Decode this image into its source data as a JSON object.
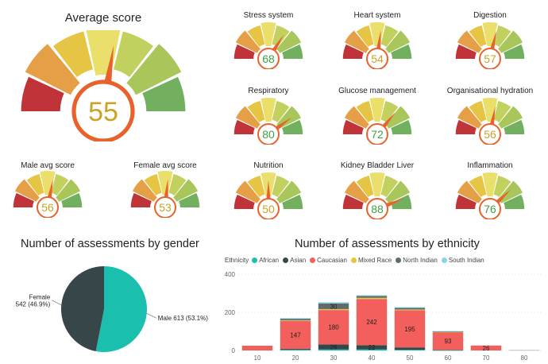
{
  "gauge_colors": [
    "#bf3339",
    "#e59f47",
    "#e6c544",
    "#e9df6a",
    "#c2d05f",
    "#a8c65a",
    "#72b060"
  ],
  "main_gauge": {
    "title": "Average score",
    "value": 55,
    "value_color": "#c9a227"
  },
  "gender_gauges": [
    {
      "title": "Male avg score",
      "value": 56,
      "value_color": "#c9a227"
    },
    {
      "title": "Female avg score",
      "value": 53,
      "value_color": "#c9a227"
    }
  ],
  "system_gauges": [
    {
      "title": "Stress system",
      "value": 68,
      "value_color": "#3f9f45"
    },
    {
      "title": "Heart system",
      "value": 54,
      "value_color": "#c9a227"
    },
    {
      "title": "Digestion",
      "value": 57,
      "value_color": "#c9a227"
    },
    {
      "title": "Respiratory",
      "value": 80,
      "value_color": "#3f9f45"
    },
    {
      "title": "Glucose management",
      "value": 72,
      "value_color": "#3f9f45"
    },
    {
      "title": "Organisational hydration",
      "value": 56,
      "value_color": "#c9a227"
    },
    {
      "title": "Nutrition",
      "value": 50,
      "value_color": "#c9a227"
    },
    {
      "title": "Kidney Bladder Liver",
      "value": 88,
      "value_color": "#3f9f45"
    },
    {
      "title": "Inflammation",
      "value": 76,
      "value_color": "#3f9f45"
    }
  ],
  "chart_data": [
    {
      "type": "pie",
      "title": "Number of assessments by gender",
      "slices": [
        {
          "name": "Male",
          "value": 613,
          "label": "Male 613 (53.1%)",
          "color": "#1abfad"
        },
        {
          "name": "Female",
          "value": 542,
          "label": "Female\n542 (46.9%)",
          "color": "#374649"
        }
      ]
    },
    {
      "type": "bar",
      "stacked": true,
      "title": "Number of assessments by ethnicity",
      "legend_title": "Ethnicity",
      "categories": [
        "10",
        "20",
        "30",
        "40",
        "50",
        "60",
        "70",
        "80"
      ],
      "ylim": [
        0,
        400
      ],
      "yticks": [
        0,
        200,
        400
      ],
      "series": [
        {
          "name": "African",
          "color": "#1abfad",
          "values": [
            0,
            4,
            6,
            6,
            4,
            1,
            0,
            0
          ]
        },
        {
          "name": "Asian",
          "color": "#374649",
          "values": [
            0,
            4,
            26,
            22,
            12,
            2,
            0,
            0
          ]
        },
        {
          "name": "Caucasian",
          "color": "#f25f5c",
          "values": [
            25,
            147,
            180,
            242,
            195,
            93,
            26,
            2
          ]
        },
        {
          "name": "Mixed Race",
          "color": "#e9c53a",
          "values": [
            0,
            3,
            5,
            6,
            4,
            1,
            0,
            0
          ]
        },
        {
          "name": "North Indian",
          "color": "#5f6b6d",
          "values": [
            0,
            8,
            30,
            10,
            8,
            3,
            0,
            0
          ]
        },
        {
          "name": "South Indian",
          "color": "#8ad4eb",
          "values": [
            0,
            4,
            6,
            4,
            4,
            2,
            0,
            0
          ]
        }
      ],
      "data_labels": [
        {
          "category": "20",
          "series": "Caucasian",
          "text": "147"
        },
        {
          "category": "30",
          "series": "Caucasian",
          "text": "180"
        },
        {
          "category": "30",
          "series": "Asian",
          "text": "26"
        },
        {
          "category": "30",
          "series": "North Indian",
          "text": "30"
        },
        {
          "category": "40",
          "series": "Caucasian",
          "text": "242"
        },
        {
          "category": "40",
          "series": "Asian",
          "text": "22"
        },
        {
          "category": "50",
          "series": "Caucasian",
          "text": "195"
        },
        {
          "category": "60",
          "series": "Caucasian",
          "text": "93"
        },
        {
          "category": "70",
          "series": "Caucasian",
          "text": "26"
        }
      ]
    }
  ]
}
